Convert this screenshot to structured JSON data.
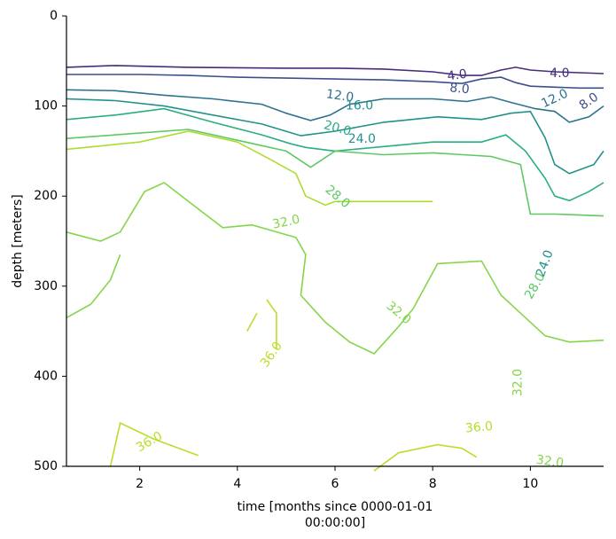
{
  "chart_data": {
    "type": "contour",
    "xlabel_lines": [
      "time [months since 0000-01-01",
      "00:00:00]"
    ],
    "ylabel": "depth [meters]",
    "xlim": [
      0.5,
      11.5
    ],
    "ylim": [
      500,
      0
    ],
    "x_ticks": [
      2,
      4,
      6,
      8,
      10
    ],
    "y_ticks": [
      0,
      100,
      200,
      300,
      400,
      500
    ],
    "grid": false,
    "levels": [
      {
        "value": 4.0,
        "label": "4.0",
        "color": "#472c7a",
        "lines": [
          [
            [
              0.5,
              57
            ],
            [
              1.5,
              55
            ],
            [
              3,
              57
            ],
            [
              5,
              58
            ],
            [
              6,
              58
            ],
            [
              7,
              59
            ],
            [
              8,
              62
            ],
            [
              8.6,
              66
            ],
            [
              9,
              66
            ],
            [
              9.4,
              60
            ],
            [
              9.7,
              57
            ],
            [
              10,
              60
            ],
            [
              10.5,
              62
            ],
            [
              11,
              63
            ],
            [
              11.5,
              64
            ]
          ]
        ]
      },
      {
        "value": 8.0,
        "label": "8.0",
        "color": "#3b518b",
        "lines": [
          [
            [
              0.5,
              65
            ],
            [
              2,
              65
            ],
            [
              3,
              66
            ],
            [
              4,
              68
            ],
            [
              5,
              69
            ],
            [
              6,
              70
            ],
            [
              7,
              71
            ],
            [
              8,
              73
            ],
            [
              8.6,
              75
            ],
            [
              9,
              70
            ],
            [
              9.4,
              68
            ],
            [
              9.7,
              74
            ],
            [
              10,
              78
            ],
            [
              10.5,
              79
            ],
            [
              11,
              80
            ],
            [
              11.5,
              80
            ]
          ]
        ]
      },
      {
        "value": 12.0,
        "label": "12.0",
        "color": "#2c728e",
        "lines": [
          [
            [
              0.5,
              82
            ],
            [
              1.5,
              83
            ],
            [
              2.5,
              88
            ],
            [
              3.5,
              92
            ],
            [
              4.5,
              98
            ],
            [
              5,
              108
            ],
            [
              5.5,
              116
            ],
            [
              5.9,
              110
            ],
            [
              6.3,
              98
            ],
            [
              7,
              92
            ],
            [
              8,
              92
            ],
            [
              8.7,
              95
            ],
            [
              9.2,
              90
            ],
            [
              9.6,
              96
            ],
            [
              10.1,
              103
            ],
            [
              10.5,
              106
            ],
            [
              10.8,
              118
            ],
            [
              11.2,
              112
            ],
            [
              11.5,
              100
            ]
          ]
        ]
      },
      {
        "value": 16.0,
        "label": "16.0",
        "color": "#21918c",
        "lines": [
          [
            [
              0.5,
              92
            ],
            [
              1.5,
              94
            ],
            [
              2.5,
              100
            ],
            [
              3.5,
              110
            ],
            [
              4.5,
              120
            ],
            [
              5.3,
              133
            ],
            [
              6,
              128
            ],
            [
              7,
              118
            ],
            [
              8.1,
              112
            ],
            [
              9,
              115
            ],
            [
              9.6,
              108
            ],
            [
              10,
              106
            ],
            [
              10.3,
              135
            ],
            [
              10.5,
              165
            ],
            [
              10.8,
              175
            ],
            [
              11.3,
              165
            ],
            [
              11.5,
              150
            ]
          ]
        ]
      },
      {
        "value": 20.0,
        "label": "20.0",
        "color": "#28ae80",
        "lines": [
          [
            [
              0.5,
              115
            ],
            [
              1.5,
              110
            ],
            [
              2.5,
              103
            ],
            [
              3.5,
              118
            ],
            [
              4.5,
              132
            ],
            [
              5.1,
              142
            ],
            [
              5.4,
              146
            ],
            [
              6,
              150
            ],
            [
              7,
              145
            ],
            [
              8,
              140
            ],
            [
              9,
              140
            ],
            [
              9.5,
              132
            ],
            [
              9.9,
              150
            ],
            [
              10.3,
              180
            ],
            [
              10.5,
              200
            ],
            [
              10.8,
              205
            ],
            [
              11.2,
              195
            ],
            [
              11.5,
              185
            ]
          ]
        ]
      },
      {
        "value": 24.0,
        "label": "24.0",
        "color": "#5ec962",
        "lines": [
          [
            [
              0.5,
              136
            ],
            [
              2,
              130
            ],
            [
              3,
              126
            ],
            [
              4,
              138
            ],
            [
              5,
              150
            ],
            [
              5.5,
              168
            ],
            [
              6,
              150
            ],
            [
              7,
              154
            ],
            [
              8,
              152
            ],
            [
              9.2,
              156
            ],
            [
              9.8,
              165
            ],
            [
              10,
              220
            ],
            [
              10.5,
              220
            ],
            [
              11.5,
              222
            ]
          ]
        ]
      },
      {
        "value": 28.0,
        "label": "28.0",
        "color": "#addc30",
        "lines": [
          [
            [
              0.5,
              148
            ],
            [
              2,
              140
            ],
            [
              3,
              128
            ],
            [
              4,
              140
            ],
            [
              4.7,
              160
            ],
            [
              5.2,
              175
            ],
            [
              5.4,
              200
            ],
            [
              5.8,
              210
            ],
            [
              6,
              206
            ],
            [
              8,
              206
            ]
          ]
        ]
      },
      {
        "value": 32.0,
        "label": "32.0",
        "color": "#85d54a",
        "lines": [
          [
            [
              0.5,
              240
            ],
            [
              1.2,
              250
            ],
            [
              1.6,
              240
            ],
            [
              2.1,
              195
            ],
            [
              2.5,
              185
            ],
            [
              3,
              206
            ],
            [
              3.7,
              235
            ],
            [
              4.3,
              232
            ],
            [
              5.2,
              246
            ],
            [
              5.4,
              265
            ],
            [
              5.3,
              310
            ],
            [
              5.8,
              340
            ],
            [
              6.3,
              362
            ],
            [
              6.8,
              375
            ],
            [
              7.3,
              345
            ],
            [
              7.6,
              325
            ],
            [
              8.1,
              275
            ],
            [
              9,
              272
            ],
            [
              9.4,
              310
            ],
            [
              9.8,
              330
            ],
            [
              10.3,
              355
            ],
            [
              10.8,
              362
            ],
            [
              11.5,
              360
            ]
          ],
          [
            [
              0.5,
              335
            ],
            [
              1,
              320
            ],
            [
              1.4,
              293
            ],
            [
              1.6,
              265
            ]
          ]
        ]
      },
      {
        "value": 36.0,
        "label": "36.0",
        "color": "#b8de29",
        "lines": [
          [
            [
              4.6,
              315
            ],
            [
              4.8,
              330
            ],
            [
              4.8,
              370
            ]
          ],
          [
            [
              4.2,
              350
            ],
            [
              4.4,
              330
            ]
          ],
          [
            [
              1.4,
              500
            ],
            [
              1.6,
              452
            ],
            [
              2.3,
              470
            ],
            [
              3.2,
              488
            ]
          ],
          [
            [
              6.8,
              505
            ],
            [
              7.3,
              485
            ],
            [
              8.1,
              476
            ],
            [
              8.6,
              480
            ],
            [
              8.9,
              490
            ]
          ]
        ]
      }
    ],
    "contour_labels": [
      {
        "text": "4.0",
        "x": 8.5,
        "y": 66,
        "color": "#472c7a",
        "rotation": -8
      },
      {
        "text": "8.0",
        "x": 8.55,
        "y": 81,
        "color": "#3b518b",
        "rotation": 5
      },
      {
        "text": "4.0",
        "x": 10.6,
        "y": 64,
        "color": "#472c7a",
        "rotation": 0
      },
      {
        "text": "8.0",
        "x": 11.2,
        "y": 95,
        "color": "#3b518b",
        "rotation": -35
      },
      {
        "text": "12.0",
        "x": 6.1,
        "y": 89,
        "color": "#2c728e",
        "rotation": 8
      },
      {
        "text": "16.0",
        "x": 6.5,
        "y": 100,
        "color": "#21918c",
        "rotation": 0
      },
      {
        "text": "12.0",
        "x": 10.5,
        "y": 92,
        "color": "#2c728e",
        "rotation": -25
      },
      {
        "text": "20.0",
        "x": 6.05,
        "y": 125,
        "color": "#28ae80",
        "rotation": 15
      },
      {
        "text": "24.0",
        "x": 6.55,
        "y": 137,
        "color": "#21918c",
        "rotation": 0
      },
      {
        "text": "28.0",
        "x": 6.05,
        "y": 201,
        "color": "#5ec962",
        "rotation": 40
      },
      {
        "text": "32.0",
        "x": 5.0,
        "y": 229,
        "color": "#85d54a",
        "rotation": -12
      },
      {
        "text": "32.0",
        "x": 7.3,
        "y": 330,
        "color": "#85d54a",
        "rotation": 40
      },
      {
        "text": "36.0",
        "x": 4.7,
        "y": 376,
        "color": "#b8de29",
        "rotation": -55
      },
      {
        "text": "24.0",
        "x": 10.3,
        "y": 275,
        "color": "#21918c",
        "rotation": -70
      },
      {
        "text": "28.0",
        "x": 10.1,
        "y": 300,
        "color": "#5ec962",
        "rotation": -60
      },
      {
        "text": "32.0",
        "x": 9.75,
        "y": 407,
        "color": "#85d54a",
        "rotation": -90
      },
      {
        "text": "36.0",
        "x": 2.2,
        "y": 473,
        "color": "#b8de29",
        "rotation": -30
      },
      {
        "text": "36.0",
        "x": 8.95,
        "y": 457,
        "color": "#b8de29",
        "rotation": -5
      },
      {
        "text": "32.0",
        "x": 10.4,
        "y": 495,
        "color": "#85d54a",
        "rotation": 8
      }
    ]
  }
}
